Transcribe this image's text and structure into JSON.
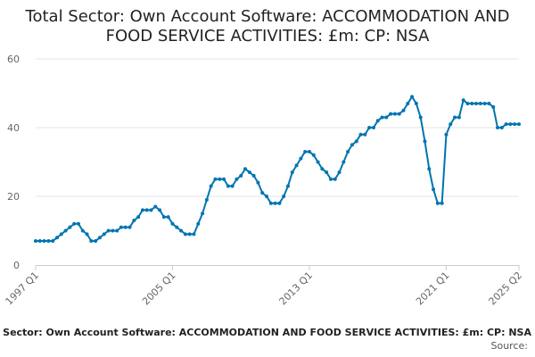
{
  "chart_data": {
    "type": "line",
    "title": "Total Sector: Own Account Software: ACCOMMODATION AND FOOD SERVICE ACTIVITIES: £m: CP: NSA",
    "xlabel": "",
    "ylabel": "",
    "ylim": [
      0,
      60
    ],
    "yticks": [
      0,
      20,
      40,
      60
    ],
    "xticks": [
      "1997 Q1",
      "2005 Q1",
      "2013 Q1",
      "2021 Q1",
      "2025 Q2"
    ],
    "grid": true,
    "line_color": "#0075b0",
    "x": [
      "1997 Q1",
      "1997 Q2",
      "1997 Q3",
      "1997 Q4",
      "1998 Q1",
      "1998 Q2",
      "1998 Q3",
      "1998 Q4",
      "1999 Q1",
      "1999 Q2",
      "1999 Q3",
      "1999 Q4",
      "2000 Q1",
      "2000 Q2",
      "2000 Q3",
      "2000 Q4",
      "2001 Q1",
      "2001 Q2",
      "2001 Q3",
      "2001 Q4",
      "2002 Q1",
      "2002 Q2",
      "2002 Q3",
      "2002 Q4",
      "2003 Q1",
      "2003 Q2",
      "2003 Q3",
      "2003 Q4",
      "2004 Q1",
      "2004 Q2",
      "2004 Q3",
      "2004 Q4",
      "2005 Q1",
      "2005 Q2",
      "2005 Q3",
      "2005 Q4",
      "2006 Q1",
      "2006 Q2",
      "2006 Q3",
      "2006 Q4",
      "2007 Q1",
      "2007 Q2",
      "2007 Q3",
      "2007 Q4",
      "2008 Q1",
      "2008 Q2",
      "2008 Q3",
      "2008 Q4",
      "2009 Q1",
      "2009 Q2",
      "2009 Q3",
      "2009 Q4",
      "2010 Q1",
      "2010 Q2",
      "2010 Q3",
      "2010 Q4",
      "2011 Q1",
      "2011 Q2",
      "2011 Q3",
      "2011 Q4",
      "2012 Q1",
      "2012 Q2",
      "2012 Q3",
      "2012 Q4",
      "2013 Q1",
      "2013 Q2",
      "2013 Q3",
      "2013 Q4",
      "2014 Q1",
      "2014 Q2",
      "2014 Q3",
      "2014 Q4",
      "2015 Q1",
      "2015 Q2",
      "2015 Q3",
      "2015 Q4",
      "2016 Q1",
      "2016 Q2",
      "2016 Q3",
      "2016 Q4",
      "2017 Q1",
      "2017 Q2",
      "2017 Q3",
      "2017 Q4",
      "2018 Q1",
      "2018 Q2",
      "2018 Q3",
      "2018 Q4",
      "2019 Q1",
      "2019 Q2",
      "2019 Q3",
      "2019 Q4",
      "2020 Q1",
      "2020 Q2",
      "2020 Q3",
      "2020 Q4",
      "2021 Q1",
      "2021 Q2",
      "2021 Q3",
      "2021 Q4",
      "2022 Q1",
      "2022 Q2",
      "2022 Q3",
      "2022 Q4",
      "2023 Q1",
      "2023 Q2",
      "2023 Q3",
      "2023 Q4",
      "2024 Q1",
      "2024 Q2",
      "2024 Q3",
      "2024 Q4",
      "2025 Q1",
      "2025 Q2"
    ],
    "series": [
      {
        "name": "",
        "values": [
          7,
          7,
          7,
          7,
          7,
          8,
          9,
          10,
          11,
          12,
          12,
          10,
          9,
          7,
          7,
          8,
          9,
          10,
          10,
          10,
          11,
          11,
          11,
          13,
          14,
          16,
          16,
          16,
          17,
          16,
          14,
          14,
          12,
          11,
          10,
          9,
          9,
          9,
          12,
          15,
          19,
          23,
          25,
          25,
          25,
          23,
          23,
          25,
          26,
          28,
          27,
          26,
          24,
          21,
          20,
          18,
          18,
          18,
          20,
          23,
          27,
          29,
          31,
          33,
          33,
          32,
          30,
          28,
          27,
          25,
          25,
          27,
          30,
          33,
          35,
          36,
          38,
          38,
          40,
          40,
          42,
          43,
          43,
          44,
          44,
          44,
          45,
          47,
          49,
          47,
          43,
          36,
          28,
          22,
          18,
          18,
          38,
          41,
          43,
          43,
          48,
          47,
          47,
          47,
          47,
          47,
          47,
          46,
          40,
          40,
          41,
          41,
          41,
          41
        ]
      }
    ]
  },
  "footer": {
    "series_label": "Total Sector: Own Account Software: ACCOMMODATION AND FOOD SERVICE ACTIVITIES: £m: CP: NSA",
    "source_label": "Source:"
  }
}
